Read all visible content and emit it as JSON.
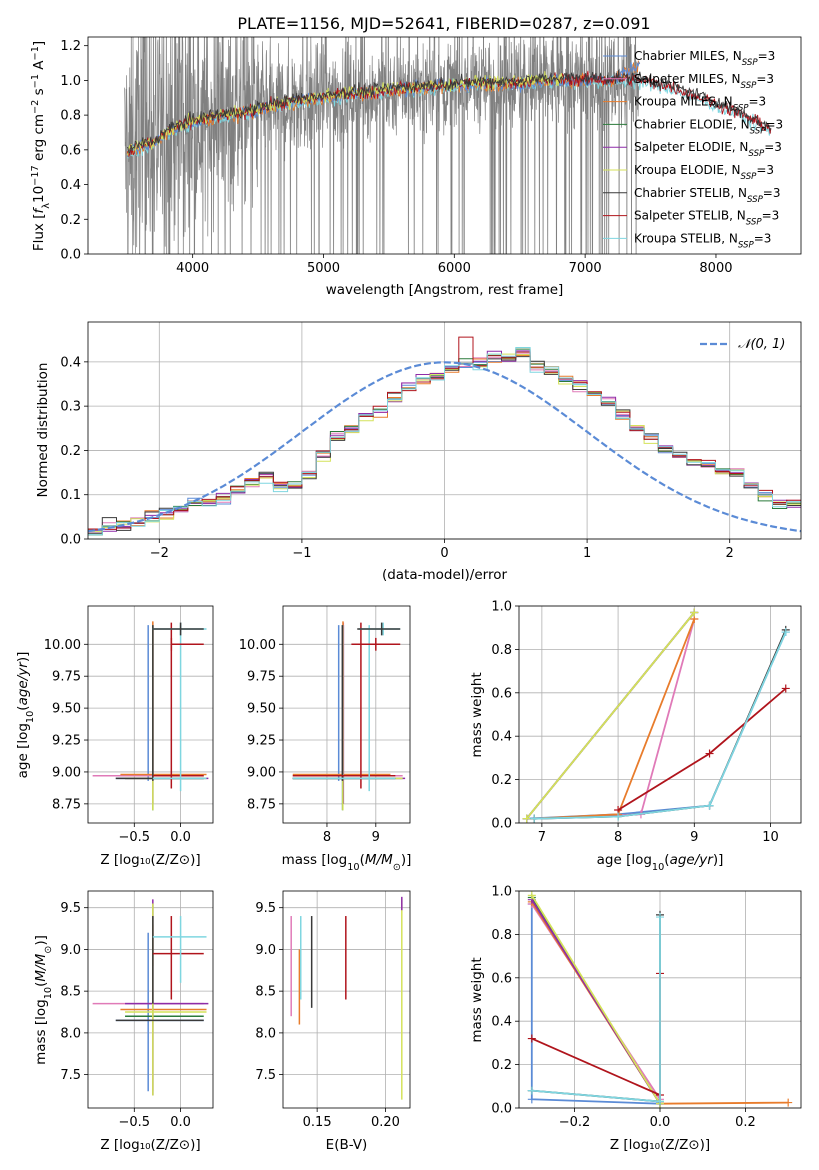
{
  "figure": {
    "title": "PLATE=1156, MJD=52641, FIBERID=0287, z=0.091"
  },
  "colors": {
    "Chabrier MILES": "#5b8bd6",
    "Salpeter MILES": "#e07ab8",
    "Kroupa MILES": "#e87c2c",
    "Chabrier ELODIE": "#2a7a3a",
    "Salpeter ELODIE": "#8e2ca8",
    "Kroupa ELODIE": "#d4e25a",
    "Chabrier STELIB": "#3a3a3a",
    "Salpeter STELIB": "#b0141c",
    "Kroupa STELIB": "#7fd6e0",
    "data": "#808080",
    "normal": "#5b8bd6"
  },
  "chart_data": [
    {
      "id": "spectrum",
      "type": "line",
      "title": "PLATE=1156, MJD=52641, FIBERID=0287, z=0.091",
      "xlabel": "wavelength [Angstrom, rest frame]",
      "ylabel": "Flux [f_λ 10^-17 erg cm^-2 s^-1 A^-1]",
      "xlim": [
        3200,
        8650
      ],
      "ylim": [
        0,
        1.25
      ],
      "xticks": [
        4000,
        5000,
        6000,
        7000,
        8000
      ],
      "yticks": [
        0.0,
        0.2,
        0.4,
        0.6,
        0.8,
        1.0,
        1.2
      ],
      "legend_position": "top-right",
      "legend": [
        "Chabrier MILES, N_SSP=3",
        "Salpeter MILES, N_SSP=3",
        "Kroupa MILES, N_SSP=3",
        "Chabrier ELODIE, N_SSP=3",
        "Salpeter ELODIE, N_SSP=3",
        "Kroupa ELODIE, N_SSP=3",
        "Chabrier STELIB, N_SSP=3",
        "Salpeter STELIB, N_SSP=3",
        "Kroupa STELIB, N_SSP=3"
      ],
      "data_spectrum_range": [
        3480,
        7410
      ],
      "model_continuum": {
        "x": [
          3500,
          3600,
          3700,
          3800,
          3900,
          4000,
          4200,
          4400,
          4600,
          4800,
          5000,
          5200,
          5400,
          5600,
          5800,
          6000,
          6200,
          6400,
          6600,
          6800,
          7000,
          7200,
          7400,
          7600,
          7800,
          8000,
          8200,
          8400
        ],
        "y": [
          0.58,
          0.62,
          0.63,
          0.7,
          0.73,
          0.76,
          0.79,
          0.81,
          0.85,
          0.88,
          0.9,
          0.92,
          0.93,
          0.95,
          0.96,
          0.97,
          0.98,
          0.98,
          0.99,
          1.0,
          1.0,
          1.0,
          1.0,
          0.97,
          0.92,
          0.86,
          0.8,
          0.72
        ]
      },
      "grid": false
    },
    {
      "id": "residuals",
      "type": "line",
      "xlabel": "(data-model)/error",
      "ylabel": "Normed distribution",
      "xlim": [
        -2.5,
        2.5
      ],
      "ylim": [
        0,
        0.49
      ],
      "xticks": [
        -2,
        -1,
        0,
        1,
        2
      ],
      "yticks": [
        0.0,
        0.1,
        0.2,
        0.3,
        0.4
      ],
      "legend": [
        "𝒩(0, 1)"
      ],
      "legend_position": "top-right",
      "bin_edges_start": -2.5,
      "bin_width": 0.1,
      "histogram_base": [
        0.02,
        0.03,
        0.03,
        0.04,
        0.05,
        0.06,
        0.07,
        0.08,
        0.08,
        0.09,
        0.11,
        0.13,
        0.14,
        0.12,
        0.12,
        0.15,
        0.19,
        0.23,
        0.25,
        0.28,
        0.29,
        0.32,
        0.34,
        0.36,
        0.37,
        0.39,
        0.4,
        0.4,
        0.41,
        0.41,
        0.42,
        0.39,
        0.38,
        0.36,
        0.35,
        0.33,
        0.31,
        0.28,
        0.25,
        0.23,
        0.2,
        0.19,
        0.18,
        0.17,
        0.15,
        0.15,
        0.12,
        0.1,
        0.08,
        0.08
      ],
      "grid": true
    },
    {
      "id": "age-Z",
      "type": "scatter",
      "xlabel": "Z [log10(Z/Z⊙)]",
      "ylabel": "age  [log10(age/yr)]",
      "xlim": [
        -1.0,
        0.35
      ],
      "ylim": [
        8.6,
        10.3
      ],
      "xticks": [
        -0.5,
        0.0
      ],
      "yticks": [
        8.75,
        9.0,
        9.25,
        9.5,
        9.75,
        10.0
      ],
      "grid": true
    },
    {
      "id": "age-mass",
      "type": "scatter",
      "xlabel": "mass [log10(M/M⊙)]",
      "ylabel": "",
      "xlim": [
        7.1,
        9.7
      ],
      "ylim": [
        8.6,
        10.3
      ],
      "xticks": [
        8,
        9
      ],
      "yticks": [
        8.75,
        9.0,
        9.25,
        9.5,
        9.75,
        10.0
      ],
      "grid": true
    },
    {
      "id": "weight-age",
      "type": "line",
      "xlabel": "age  [log10(age/yr)]",
      "ylabel": "mass weight",
      "xlim": [
        6.7,
        10.4
      ],
      "ylim": [
        0,
        1.0
      ],
      "xticks": [
        7,
        8,
        9,
        10
      ],
      "yticks": [
        0.0,
        0.2,
        0.4,
        0.6,
        0.8,
        1.0
      ],
      "grid": true,
      "series": [
        {
          "name": "Chabrier MILES",
          "x": [
            6.8,
            8.0,
            9.2,
            10.2
          ],
          "y": [
            0.02,
            0.04,
            0.08,
            0.88
          ]
        },
        {
          "name": "Salpeter MILES",
          "x": [
            6.9,
            8.3,
            9.0
          ],
          "y": [
            0.02,
            0.04,
            0.94
          ]
        },
        {
          "name": "Kroupa MILES",
          "x": [
            6.9,
            8.0,
            9.0
          ],
          "y": [
            0.02,
            0.04,
            0.94
          ]
        },
        {
          "name": "Chabrier ELODIE",
          "x": [
            6.8,
            9.0
          ],
          "y": [
            0.02,
            0.97
          ]
        },
        {
          "name": "Salpeter ELODIE",
          "x": [
            6.8,
            9.0
          ],
          "y": [
            0.02,
            0.97
          ]
        },
        {
          "name": "Kroupa ELODIE",
          "x": [
            6.8,
            9.0
          ],
          "y": [
            0.02,
            0.97
          ]
        },
        {
          "name": "Chabrier STELIB",
          "x": [
            6.9,
            8.0,
            9.2,
            10.2
          ],
          "y": [
            0.02,
            0.03,
            0.08,
            0.89
          ]
        },
        {
          "name": "Salpeter STELIB",
          "x": [
            8.0,
            9.2,
            10.2
          ],
          "y": [
            0.06,
            0.32,
            0.62
          ]
        },
        {
          "name": "Kroupa STELIB",
          "x": [
            6.9,
            8.0,
            9.2,
            10.2
          ],
          "y": [
            0.02,
            0.03,
            0.08,
            0.88
          ]
        }
      ]
    },
    {
      "id": "mass-Z",
      "type": "scatter",
      "xlabel": "Z [log10(Z/Z⊙)]",
      "ylabel": "mass [log10(M/M⊙)]",
      "xlim": [
        -1.0,
        0.35
      ],
      "ylim": [
        7.1,
        9.7
      ],
      "xticks": [
        -0.5,
        0.0
      ],
      "yticks": [
        7.5,
        8.0,
        8.5,
        9.0,
        9.5
      ],
      "grid": true
    },
    {
      "id": "mass-EBV",
      "type": "scatter",
      "xlabel": "E(B-V)",
      "ylabel": "",
      "xlim": [
        0.125,
        0.218
      ],
      "ylim": [
        7.1,
        9.7
      ],
      "xticks": [
        0.15,
        0.2
      ],
      "yticks": [
        7.5,
        8.0,
        8.5,
        9.0,
        9.5
      ],
      "grid": true,
      "series": [
        {
          "name": "Salpeter MILES",
          "x": [
            0.131
          ],
          "y": [
            8.8
          ],
          "yerr": [
            0.6
          ]
        },
        {
          "name": "Kroupa MILES",
          "x": [
            0.137
          ],
          "y": [
            8.55
          ],
          "yerr": [
            0.45
          ]
        },
        {
          "name": "Kroupa STELIB",
          "x": [
            0.138
          ],
          "y": [
            8.9
          ],
          "yerr": [
            0.5
          ]
        },
        {
          "name": "Chabrier STELIB",
          "x": [
            0.146
          ],
          "y": [
            8.85
          ],
          "yerr": [
            0.55
          ]
        },
        {
          "name": "Salpeter STELIB",
          "x": [
            0.171
          ],
          "y": [
            8.9
          ],
          "yerr": [
            0.5
          ]
        },
        {
          "name": "Kroupa ELODIE",
          "x": [
            0.212
          ],
          "y": [
            8.4
          ],
          "yerr": [
            1.2
          ]
        },
        {
          "name": "Salpeter ELODIE",
          "x": [
            0.212
          ],
          "y": [
            9.55
          ],
          "yerr": [
            0.08
          ]
        }
      ]
    },
    {
      "id": "weight-Z",
      "type": "line",
      "xlabel": "Z [log10(Z/Z⊙)]",
      "ylabel": "mass weight",
      "xlim": [
        -0.33,
        0.33
      ],
      "ylim": [
        0,
        1.0
      ],
      "xticks": [
        -0.2,
        0.0,
        0.2
      ],
      "yticks": [
        0.0,
        0.2,
        0.4,
        0.6,
        0.8,
        1.0
      ],
      "grid": true,
      "series": [
        {
          "name": "Chabrier MILES",
          "x": [
            -0.3,
            -0.3,
            0.0,
            0.0
          ],
          "y": [
            0.94,
            0.04,
            0.02,
            0.02
          ]
        },
        {
          "name": "Salpeter MILES",
          "x": [
            -0.3,
            0.0
          ],
          "y": [
            0.94,
            0.04
          ]
        },
        {
          "name": "Kroupa MILES",
          "x": [
            -0.3,
            0.0,
            0.3
          ],
          "y": [
            0.95,
            0.02,
            0.025
          ]
        },
        {
          "name": "Chabrier ELODIE",
          "x": [
            -0.3,
            0.0
          ],
          "y": [
            0.97,
            0.02
          ]
        },
        {
          "name": "Salpeter ELODIE",
          "x": [
            -0.3,
            0.0
          ],
          "y": [
            0.96,
            0.02
          ]
        },
        {
          "name": "Kroupa ELODIE",
          "x": [
            -0.3,
            0.0
          ],
          "y": [
            0.98,
            0.02
          ]
        },
        {
          "name": "Chabrier STELIB",
          "x": [
            -0.3,
            0.0,
            0.0
          ],
          "y": [
            0.08,
            0.03,
            0.89
          ]
        },
        {
          "name": "Salpeter STELIB",
          "x": [
            -0.3,
            0.0,
            0.0
          ],
          "y": [
            0.32,
            0.06,
            0.62
          ]
        },
        {
          "name": "Kroupa STELIB",
          "x": [
            -0.3,
            0.0,
            0.0
          ],
          "y": [
            0.08,
            0.03,
            0.88
          ]
        }
      ]
    }
  ],
  "ssp_points": [
    {
      "name": "Chabrier MILES",
      "Z": -0.35,
      "Z_lo": -0.7,
      "Z_hi": 0.25,
      "age": 8.95,
      "age_err": 0.02,
      "mass": 8.15,
      "mass_lo": 7.3,
      "mass_hi": 9.2
    },
    {
      "name": "Salpeter MILES",
      "Z": -0.3,
      "Z_lo": -0.95,
      "Z_hi": 0.25,
      "age": 8.97,
      "age_err": 0.02,
      "mass": 8.35,
      "mass_lo": 7.3,
      "mass_hi": 9.55
    },
    {
      "name": "Kroupa MILES",
      "Z": -0.3,
      "Z_lo": -0.65,
      "Z_hi": 0.28,
      "age": 8.98,
      "age_err": 0.02,
      "mass": 8.28,
      "mass_lo": 8.8,
      "mass_hi": 9.3
    },
    {
      "name": "Chabrier ELODIE",
      "Z": -0.3,
      "Z_lo": -0.6,
      "Z_hi": 0.25,
      "age": 8.95,
      "age_err": 0.25,
      "mass": 8.2,
      "mass_lo": 7.25,
      "mass_hi": 9.55
    },
    {
      "name": "Salpeter ELODIE",
      "Z": -0.3,
      "Z_lo": -0.6,
      "Z_hi": 0.3,
      "age": 8.95,
      "age_err": 0.2,
      "mass": 8.35,
      "mass_lo": 7.25,
      "mass_hi": 9.6
    },
    {
      "name": "Kroupa ELODIE",
      "Z": -0.3,
      "Z_lo": -0.6,
      "Z_hi": 0.28,
      "age": 8.95,
      "age_err": 0.25,
      "mass": 8.25,
      "mass_lo": 7.25,
      "mass_hi": 9.55
    },
    {
      "name": "Chabrier STELIB",
      "Z": -0.3,
      "Z_lo": -0.7,
      "Z_hi": 0.25,
      "age": 8.95,
      "age_err": 0.02,
      "mass": 8.15,
      "mass_lo": 8.35,
      "mass_hi": 9.4
    },
    {
      "name": "Salpeter STELIB",
      "Z": -0.1,
      "Z_lo": -0.3,
      "Z_hi": 0.25,
      "age": 8.97,
      "age_err": 0.1,
      "mass": 8.95,
      "mass_lo": 8.4,
      "mass_hi": 9.4
    },
    {
      "name": "Kroupa STELIB",
      "Z": 0.0,
      "Z_lo": -0.3,
      "Z_hi": 0.28,
      "age": 8.95,
      "age_err": 0.1,
      "mass": 9.15,
      "mass_lo": 8.6,
      "mass_hi": 9.4
    }
  ],
  "ssp_old_points": [
    {
      "name": "Salpeter STELIB",
      "Z": -0.1,
      "Z_lo": -0.1,
      "Z_hi": 0.25,
      "age": 10.0,
      "mass": 9.0,
      "mass_hi": 9.5
    },
    {
      "name": "Kroupa STELIB",
      "Z": 0.0,
      "Z_lo": -0.3,
      "Z_hi": 0.28,
      "age": 10.12,
      "mass": 9.15,
      "mass_hi": 9.5
    },
    {
      "name": "Chabrier STELIB",
      "Z": 0.0,
      "Z_lo": -0.3,
      "Z_hi": 0.25,
      "age": 10.12,
      "mass": 9.12,
      "mass_hi": 9.5
    }
  ]
}
